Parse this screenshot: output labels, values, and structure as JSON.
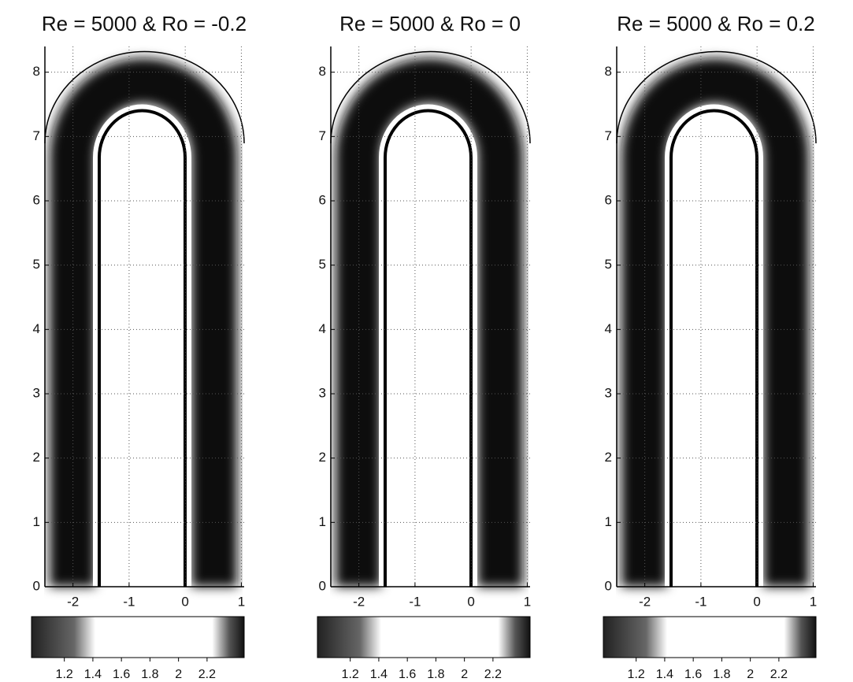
{
  "chart_data": [
    {
      "type": "field",
      "title": "Re = 5000 & Ro = -0.2",
      "xlim": [
        -2.5,
        1.05
      ],
      "ylim": [
        0,
        8.4
      ],
      "xticks": [
        -2,
        -1,
        0,
        1
      ],
      "yticks": [
        0,
        1,
        2,
        3,
        4,
        5,
        6,
        7,
        8
      ],
      "grid": true,
      "colorbar_lim": [
        0.97,
        2.46
      ],
      "colorbar_ticks": [
        1.2,
        1.4,
        1.6,
        1.8,
        2,
        2.2
      ]
    },
    {
      "type": "field",
      "title": "Re = 5000 & Ro = 0",
      "xlim": [
        -2.5,
        1.05
      ],
      "ylim": [
        0,
        8.4
      ],
      "xticks": [
        -2,
        -1,
        0,
        1
      ],
      "yticks": [
        0,
        1,
        2,
        3,
        4,
        5,
        6,
        7,
        8
      ],
      "grid": true,
      "colorbar_lim": [
        0.97,
        2.46
      ],
      "colorbar_ticks": [
        1.2,
        1.4,
        1.6,
        1.8,
        2,
        2.2
      ]
    },
    {
      "type": "field",
      "title": "Re = 5000 & Ro = 0.2",
      "xlim": [
        -2.5,
        1.05
      ],
      "ylim": [
        0,
        8.4
      ],
      "xticks": [
        -2,
        -1,
        0,
        1
      ],
      "yticks": [
        0,
        1,
        2,
        3,
        4,
        5,
        6,
        7,
        8
      ],
      "grid": true,
      "colorbar_lim": [
        0.97,
        2.46
      ],
      "colorbar_ticks": [
        1.2,
        1.4,
        1.6,
        1.8,
        2,
        2.2
      ]
    }
  ]
}
